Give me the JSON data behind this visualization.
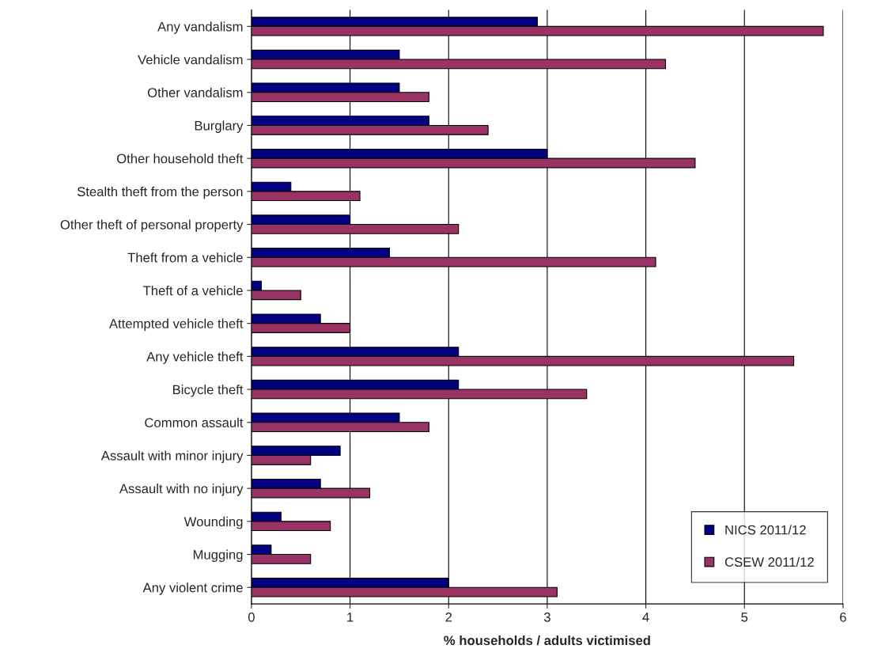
{
  "chart_data": {
    "type": "bar",
    "orientation": "horizontal",
    "xlabel": "% households / adults victimised",
    "categories": [
      "Any vandalism",
      "Vehicle vandalism",
      "Other vandalism",
      "Burglary",
      "Other household theft",
      "Stealth theft from the person",
      "Other theft of personal property",
      "Theft from a vehicle",
      "Theft of a vehicle",
      "Attempted vehicle theft",
      "Any vehicle theft",
      "Bicycle theft",
      "Common assault",
      "Assault with minor injury",
      "Assault with no injury",
      "Wounding",
      "Mugging",
      "Any violent crime"
    ],
    "series": [
      {
        "name": "NICS 2011/12",
        "color": "#000080",
        "values": [
          2.9,
          1.5,
          1.5,
          1.8,
          3.0,
          0.4,
          1.0,
          1.4,
          0.1,
          0.7,
          2.1,
          2.1,
          1.5,
          0.9,
          0.7,
          0.3,
          0.2,
          2.0
        ]
      },
      {
        "name": "CSEW 2011/12",
        "color": "#993366",
        "values": [
          5.8,
          4.2,
          1.8,
          2.4,
          4.5,
          1.1,
          2.1,
          4.1,
          0.5,
          1.0,
          5.5,
          3.4,
          1.8,
          0.6,
          1.2,
          0.8,
          0.6,
          3.1
        ]
      }
    ],
    "xlim": [
      0,
      6
    ],
    "xticks": [
      0,
      1,
      2,
      3,
      4,
      5,
      6
    ],
    "grid": "x",
    "legend": "bottom right"
  }
}
